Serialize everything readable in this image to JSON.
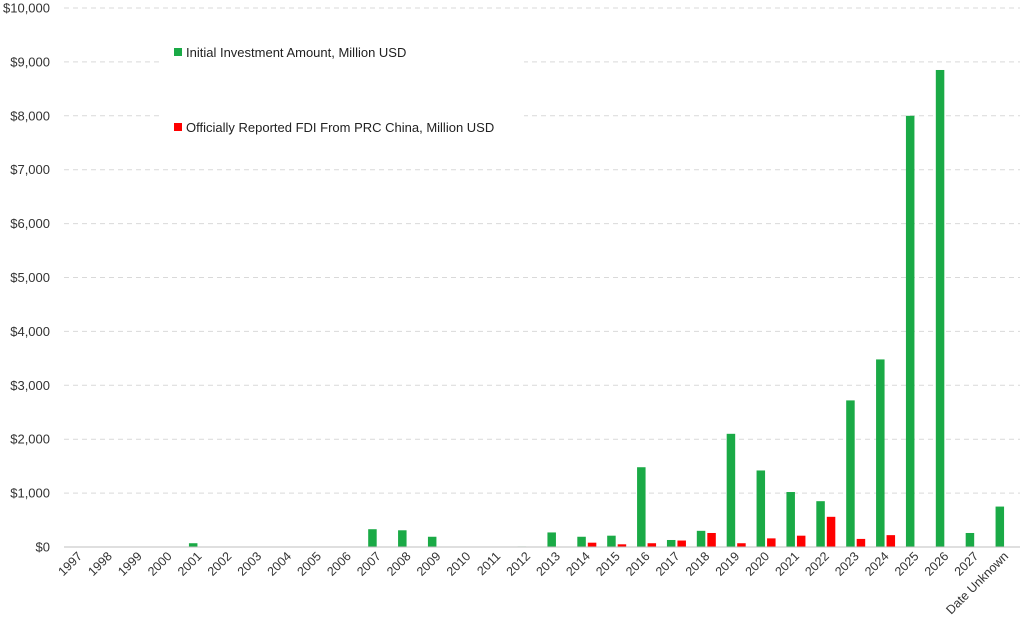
{
  "chart_data": {
    "type": "bar",
    "title": "",
    "xlabel": "",
    "ylabel": "",
    "ylim": [
      0,
      10000
    ],
    "yticks": [
      0,
      1000,
      2000,
      3000,
      4000,
      5000,
      6000,
      7000,
      8000,
      9000,
      10000
    ],
    "ytick_labels": [
      "$0",
      "$1,000",
      "$2,000",
      "$3,000",
      "$4,000",
      "$5,000",
      "$6,000",
      "$7,000",
      "$8,000",
      "$9,000",
      "$10,000"
    ],
    "grid": true,
    "legend_position": "top-left",
    "categories": [
      "1997",
      "1998",
      "1999",
      "2000",
      "2001",
      "2002",
      "2003",
      "2004",
      "2005",
      "2006",
      "2007",
      "2008",
      "2009",
      "2010",
      "2011",
      "2012",
      "2013",
      "2014",
      "2015",
      "2016",
      "2017",
      "2018",
      "2019",
      "2020",
      "2021",
      "2022",
      "2023",
      "2024",
      "2025",
      "2026",
      "2027",
      "Date Unknown"
    ],
    "series": [
      {
        "name": "Initial Investment Amount, Million USD",
        "color": "#1aaa46",
        "values": [
          0,
          0,
          0,
          0,
          70,
          0,
          0,
          0,
          0,
          0,
          330,
          310,
          190,
          0,
          0,
          10,
          270,
          190,
          210,
          1480,
          130,
          300,
          2100,
          1420,
          1020,
          850,
          2720,
          3480,
          8000,
          8850,
          260,
          750
        ]
      },
      {
        "name": "Officially Reported FDI From PRC China, Million USD",
        "color": "#ff0000",
        "values": [
          0,
          0,
          0,
          0,
          0,
          0,
          0,
          0,
          0,
          0,
          0,
          0,
          0,
          0,
          0,
          0,
          0,
          80,
          50,
          70,
          120,
          260,
          70,
          160,
          210,
          560,
          150,
          220,
          0,
          0,
          0,
          0
        ]
      }
    ]
  }
}
